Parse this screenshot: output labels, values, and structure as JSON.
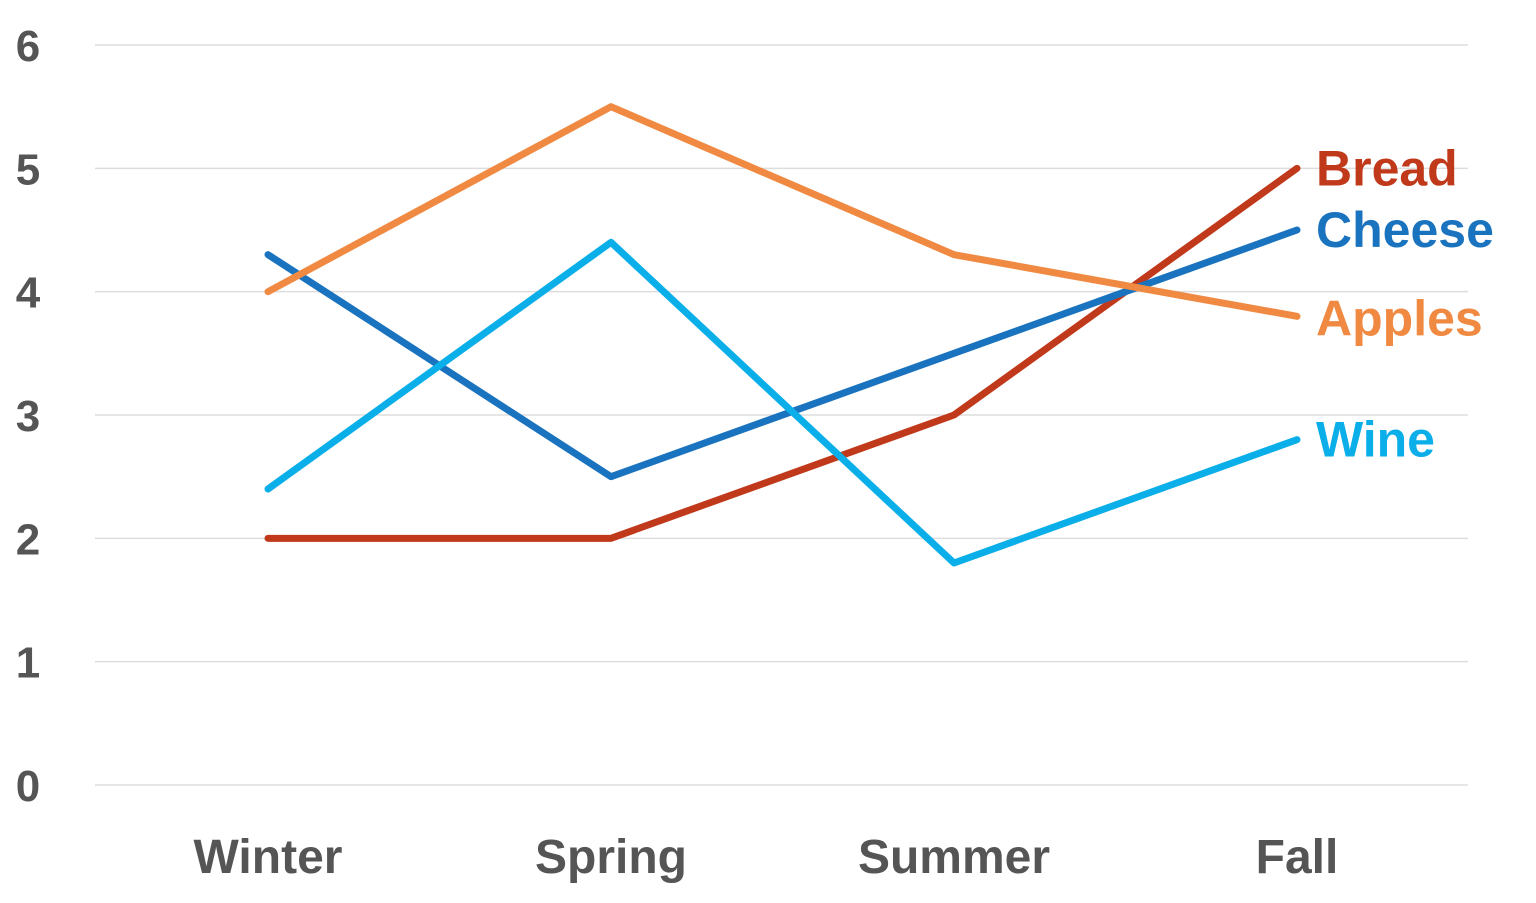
{
  "chart_data": {
    "type": "line",
    "categories": [
      "Winter",
      "Spring",
      "Summer",
      "Fall"
    ],
    "ylim": [
      0,
      6
    ],
    "yticks": [
      0,
      1,
      2,
      3,
      4,
      5,
      6
    ],
    "grid": true,
    "legend": "inline labels at line ends (right)",
    "series": [
      {
        "name": "Bread",
        "color": "#C0391B",
        "values": [
          2.0,
          2.0,
          3.0,
          5.0
        ]
      },
      {
        "name": "Cheese",
        "color": "#1A73BE",
        "values": [
          4.3,
          2.5,
          3.5,
          4.5
        ]
      },
      {
        "name": "Apples",
        "color": "#F08A42",
        "values": [
          4.0,
          5.5,
          4.3,
          3.8
        ]
      },
      {
        "name": "Wine",
        "color": "#0AAEE8",
        "values": [
          2.4,
          4.4,
          1.8,
          2.8
        ]
      }
    ],
    "gridline_color": "#dddddd",
    "tick_label_color": "#555555"
  }
}
